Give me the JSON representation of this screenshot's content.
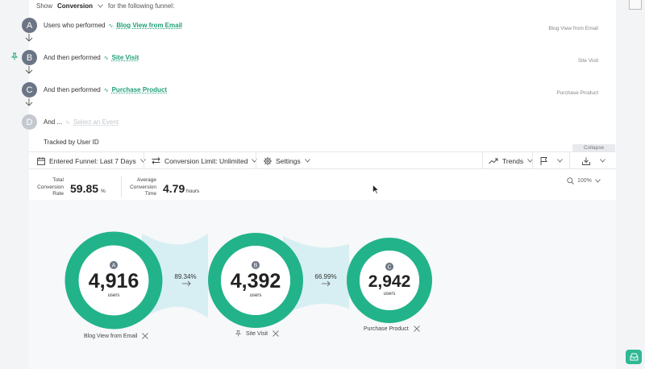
{
  "show_row": {
    "show": "Show",
    "metric": "Conversion",
    "suffix": "for the following funnel:"
  },
  "steps": [
    {
      "letter": "A",
      "prefix": "Users who performed",
      "event": "Blog View from Email",
      "right_label": "Blog View from Email"
    },
    {
      "letter": "B",
      "prefix": "And then performed",
      "event": "Site Visit",
      "right_label": "Site Visit"
    },
    {
      "letter": "C",
      "prefix": "And then performed",
      "event": "Purchase Product",
      "right_label": "Purchase Product"
    },
    {
      "letter": "D",
      "prefix": "And ...",
      "event": "Select an Event",
      "right_label": ""
    }
  ],
  "tracked": "Tracked by User ID",
  "collapse": "Collapse",
  "toolbar": {
    "entered_funnel": "Entered Funnel: Last 7 Days",
    "conversion_limit": "Conversion Limit: Unlimited",
    "settings": "Settings",
    "trends": "Trends"
  },
  "stats": {
    "total_label_1": "Total",
    "total_label_2": "Conversion",
    "total_label_3": "Rate",
    "total_value": "59.85",
    "total_unit": "%",
    "avg_label_1": "Average",
    "avg_label_2": "Conversion",
    "avg_label_3": "Time",
    "avg_value": "4.79",
    "avg_unit": "hours"
  },
  "zoom": "100%",
  "funnel": {
    "nodes": [
      {
        "letter": "A",
        "value": "4,916",
        "unit": "users",
        "label": "Blog View from Email"
      },
      {
        "letter": "B",
        "value": "4,392",
        "unit": "users",
        "label": "Site Visit"
      },
      {
        "letter": "C",
        "value": "2,942",
        "unit": "users",
        "label": "Purchase Product"
      }
    ],
    "conversions": [
      "89.34%",
      "66.99%"
    ]
  },
  "colors": {
    "accent": "#22b38a",
    "link": "#1e9e77",
    "bridge": "#d7eff3",
    "step": "#6b7585"
  },
  "icons": [
    "calendar-icon",
    "swap-icon",
    "gear-icon",
    "trend-icon",
    "flag-icon",
    "download-icon",
    "search-icon",
    "pin-icon",
    "close-icon",
    "arrow-right-icon"
  ]
}
